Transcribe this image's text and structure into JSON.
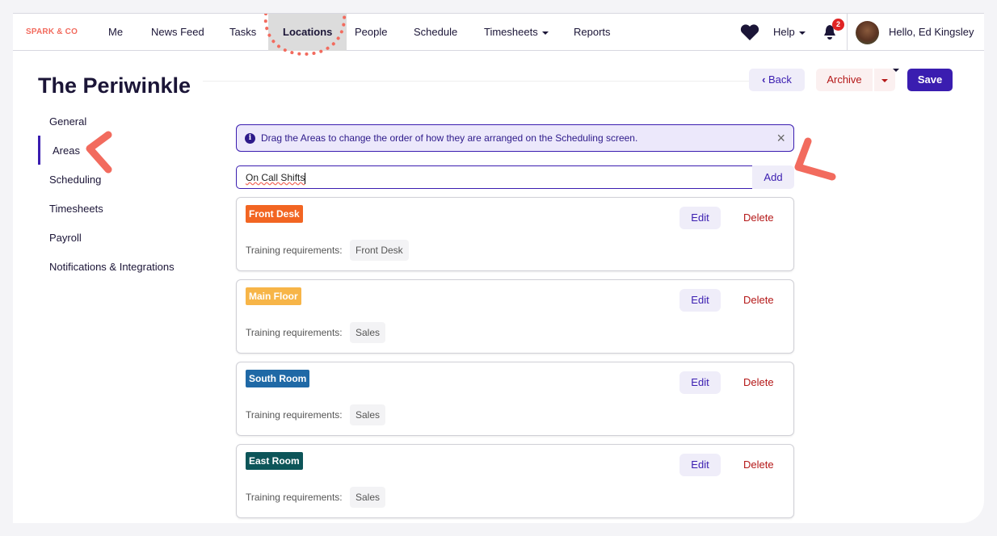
{
  "nav": {
    "logo": "SPARK & CO",
    "items": [
      "Me",
      "News Feed",
      "Tasks",
      "Locations",
      "People",
      "Schedule",
      "Timesheets",
      "Reports"
    ],
    "active": "Locations",
    "help": "Help",
    "notifications": "2",
    "user": "Hello, Ed Kingsley"
  },
  "page": {
    "title": "The Periwinkle",
    "back": "Back",
    "archive": "Archive",
    "save": "Save"
  },
  "sidebar": {
    "items": [
      "General",
      "Areas",
      "Scheduling",
      "Timesheets",
      "Payroll",
      "Notifications & Integrations"
    ],
    "active": "Areas"
  },
  "alert": {
    "text": "Drag the Areas to change the order of how they are arranged on the Scheduling screen."
  },
  "add_area": {
    "value": "On Call Shifts",
    "button": "Add"
  },
  "areas": [
    {
      "name": "Front Desk",
      "color": "#f26522",
      "label": "Training requirements:",
      "requirement": "Front Desk",
      "edit": "Edit",
      "delete": "Delete"
    },
    {
      "name": "Main Floor",
      "color": "#f7b548",
      "label": "Training requirements:",
      "requirement": "Sales",
      "edit": "Edit",
      "delete": "Delete"
    },
    {
      "name": "South Room",
      "color": "#1f69a6",
      "label": "Training requirements:",
      "requirement": "Sales",
      "edit": "Edit",
      "delete": "Delete"
    },
    {
      "name": "East Room",
      "color": "#0d5559",
      "label": "Training requirements:",
      "requirement": "Sales",
      "edit": "Edit",
      "delete": "Delete"
    }
  ],
  "colors": {
    "accent": "#3a1db0",
    "annotation": "#f26b5e",
    "danger": "#b41818"
  }
}
